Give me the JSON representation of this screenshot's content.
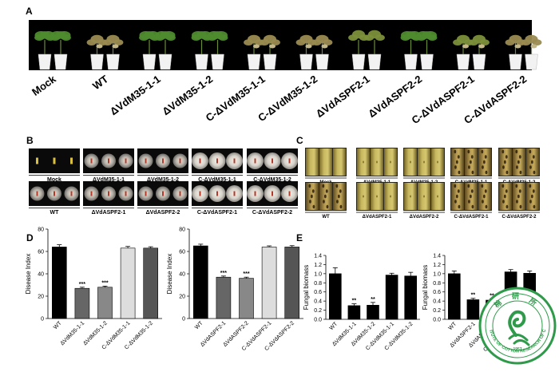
{
  "figure": {
    "panel_labels": [
      "A",
      "B",
      "C",
      "D",
      "E"
    ],
    "panel_a": {
      "strains": [
        "Mock",
        "WT",
        "ΔVdM35-1-1",
        "ΔVdM35-1-2",
        "C-ΔVdM35-1-1",
        "C-ΔVdM35-1-2",
        "ΔVdASPF2-1",
        "ΔVdASPF2-2",
        "C-ΔVdASPF2-1",
        "C-ΔVdASPF2-2"
      ]
    },
    "panel_b": {
      "row1": [
        "Mock",
        "ΔVdM35-1-1",
        "ΔVdM35-1-2",
        "C-ΔVdM35-1-1",
        "C-ΔVdM35-1-2"
      ],
      "row2": [
        "WT",
        "ΔVdASPF2-1",
        "ΔVdASPF2-2",
        "C-ΔVdASPF2-1",
        "C-ΔVdASPF2-2"
      ]
    },
    "panel_c": {
      "row1": [
        "Mock",
        "ΔVdM35-1-1",
        "ΔVdM35-1-2",
        "C-ΔVdM35-1-1",
        "C-ΔVdM35-1-2"
      ],
      "row2": [
        "WT",
        "ΔVdASPF2-1",
        "ΔVdASPF2-2",
        "C-ΔVdASPF2-1",
        "C-ΔVdASPF2-2"
      ]
    },
    "watermark": {
      "text": "INSTITUTE OF COTTON RESEARCH OF CAAS",
      "year": "1957",
      "color": "#2e9a4a"
    }
  },
  "chart_data": [
    {
      "id": "d1",
      "type": "bar",
      "ylabel": "Disease Index",
      "ylim": [
        0,
        80
      ],
      "yticks": [
        0,
        20,
        40,
        60,
        80
      ],
      "categories": [
        "WT",
        "ΔVdM35-1-1",
        "ΔVdM35-1-2",
        "C-ΔVdM35-1-1",
        "C-ΔVdM35-1-2"
      ],
      "values": [
        64,
        27,
        28,
        63,
        63
      ],
      "errors": [
        2,
        1,
        1,
        1.5,
        1.2
      ],
      "colors": [
        "#000000",
        "#666666",
        "#888888",
        "#dddddd",
        "#555555"
      ],
      "labels": [
        "",
        "***",
        "***",
        "",
        ""
      ]
    },
    {
      "id": "d2",
      "type": "bar",
      "ylabel": "Disease Index",
      "ylim": [
        0,
        80
      ],
      "yticks": [
        0,
        20,
        40,
        60,
        80
      ],
      "categories": [
        "WT",
        "ΔVdASPF2-1",
        "ΔVdASPF2-2",
        "C-ΔVdASPF2-1",
        "C-ΔVdASPF2-2"
      ],
      "values": [
        65,
        37,
        36,
        64,
        64
      ],
      "errors": [
        1.5,
        1,
        1,
        1,
        1.2
      ],
      "colors": [
        "#000000",
        "#666666",
        "#888888",
        "#dddddd",
        "#555555"
      ],
      "labels": [
        "",
        "***",
        "***",
        "",
        ""
      ]
    },
    {
      "id": "e1",
      "type": "bar",
      "ylabel": "Fungal biomass",
      "ylim": [
        0,
        1.4
      ],
      "yticks": [
        0,
        0.2,
        0.4,
        0.6,
        0.8,
        1.0,
        1.2,
        1.4
      ],
      "categories": [
        "WT",
        "ΔVdM35-1-1",
        "ΔVdM35-1-2",
        "C-ΔVdM35-1-1",
        "C-ΔVdM35-1-2"
      ],
      "values": [
        1.0,
        0.3,
        0.31,
        0.97,
        0.95
      ],
      "errors": [
        0.13,
        0.04,
        0.06,
        0.04,
        0.08
      ],
      "colors": [
        "#000000",
        "#000000",
        "#000000",
        "#000000",
        "#000000"
      ],
      "labels": [
        "",
        "**",
        "**",
        "",
        ""
      ]
    },
    {
      "id": "e2",
      "type": "bar",
      "ylabel": "Fungal biomass",
      "ylim": [
        0,
        1.4
      ],
      "yticks": [
        0,
        0.2,
        0.4,
        0.6,
        0.8,
        1.0,
        1.2,
        1.4
      ],
      "categories": [
        "WT",
        "ΔVdASPF2-1",
        "ΔVdASPF2-2",
        "C-ΔVdASPF2-1",
        "C-ΔVdASPF2-2"
      ],
      "values": [
        1.0,
        0.43,
        0.42,
        1.04,
        1.01
      ],
      "errors": [
        0.06,
        0.03,
        0.03,
        0.05,
        0.05
      ],
      "colors": [
        "#000000",
        "#000000",
        "#000000",
        "#000000",
        "#000000"
      ],
      "labels": [
        "",
        "**",
        "**",
        "",
        ""
      ]
    }
  ]
}
